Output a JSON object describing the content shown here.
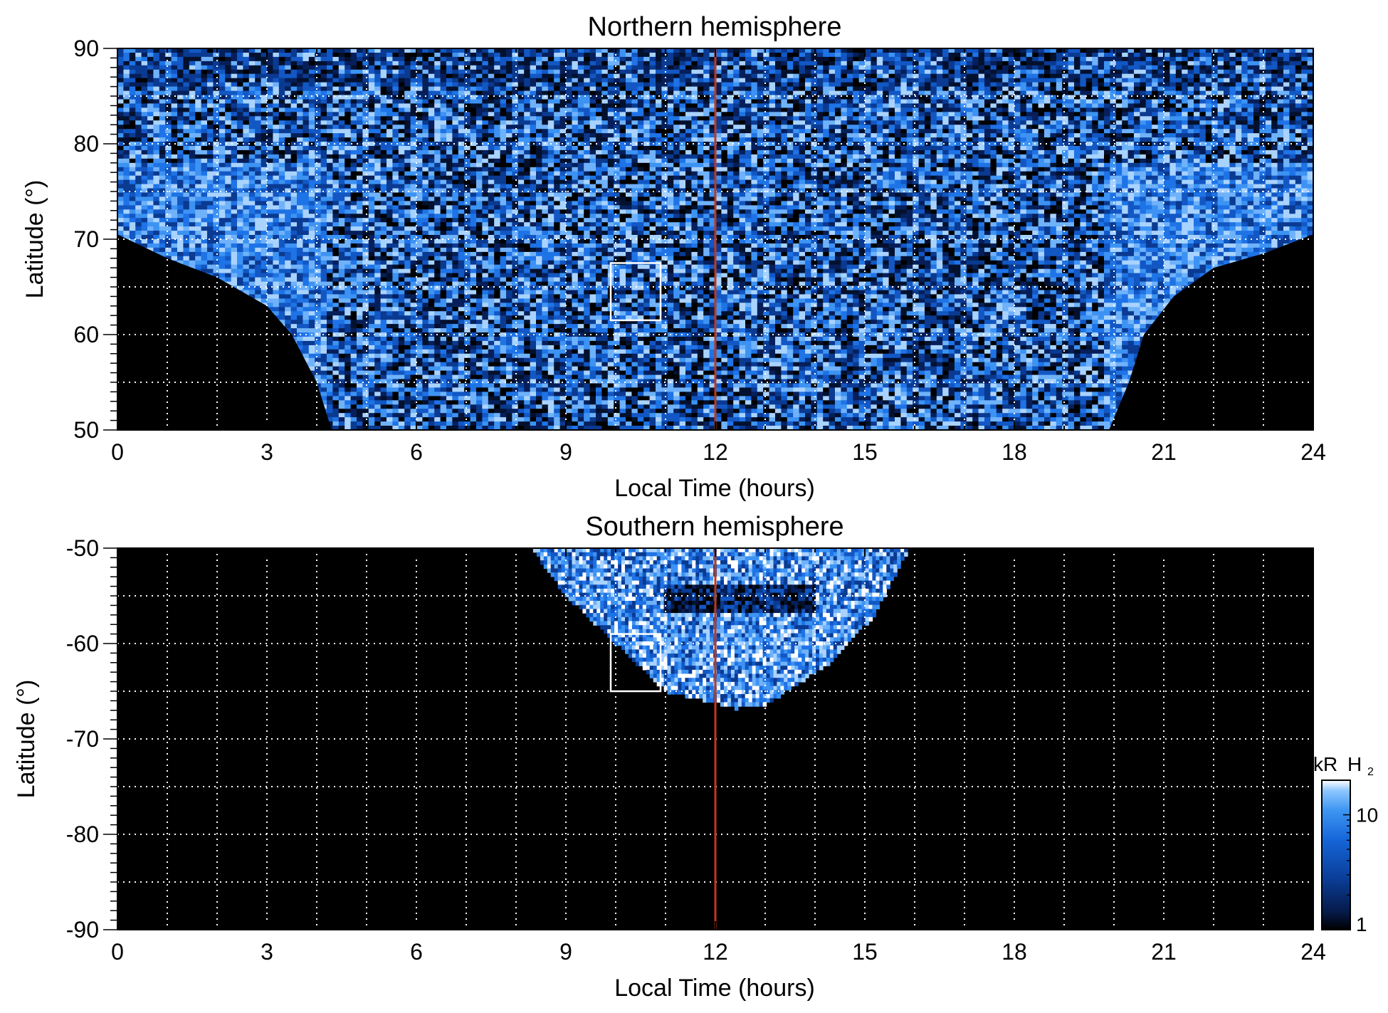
{
  "chart_data": [
    {
      "type": "heatmap",
      "panel": "north",
      "title": "Northern hemisphere",
      "xlabel": "Local Time (hours)",
      "ylabel": "Latitude (°)",
      "xlim": [
        0,
        24
      ],
      "ylim": [
        50,
        90
      ],
      "xticks": [
        0,
        3,
        6,
        9,
        12,
        15,
        18,
        21,
        24
      ],
      "yticks": [
        50,
        60,
        70,
        80,
        90
      ],
      "grid": true,
      "grid_x_step": 1,
      "grid_y_step": 5,
      "noon_line_lt": 12,
      "noon_line_color": "#c0391b",
      "highlight_box": {
        "lt": [
          9.9,
          10.9
        ],
        "lat": [
          61.5,
          67.5
        ]
      },
      "coverage_boundary": [
        [
          0,
          70.5
        ],
        [
          1,
          68
        ],
        [
          2,
          66
        ],
        [
          3,
          63
        ],
        [
          3.5,
          60
        ],
        [
          4,
          55
        ],
        [
          4.3,
          50
        ],
        [
          19.9,
          50
        ],
        [
          20.3,
          55
        ],
        [
          20.6,
          60
        ],
        [
          21.2,
          64
        ],
        [
          22,
          67
        ],
        [
          23,
          68.5
        ],
        [
          24,
          70.5
        ]
      ]
    },
    {
      "type": "heatmap",
      "panel": "south",
      "title": "Southern hemisphere",
      "xlabel": "Local Time (hours)",
      "ylabel": "Latitude (°)",
      "xlim": [
        0,
        24
      ],
      "ylim": [
        -90,
        -50
      ],
      "xticks": [
        0,
        3,
        6,
        9,
        12,
        15,
        18,
        21,
        24
      ],
      "yticks": [
        -50,
        -60,
        -70,
        -80,
        -90
      ],
      "grid": true,
      "grid_x_step": 1,
      "grid_y_step": 5,
      "noon_line_lt": 12,
      "noon_line_color": "#c0391b",
      "highlight_box": {
        "lt": [
          9.9,
          10.9
        ],
        "lat": [
          -65,
          -59
        ]
      },
      "coverage_boundary": [
        [
          8.3,
          -50
        ],
        [
          9,
          -55
        ],
        [
          10,
          -60
        ],
        [
          11,
          -65
        ],
        [
          11.8,
          -66
        ],
        [
          12.4,
          -66.8
        ],
        [
          13,
          -66.5
        ],
        [
          14.3,
          -62
        ],
        [
          15.2,
          -57
        ],
        [
          15.9,
          -50
        ]
      ]
    }
  ],
  "colorbar": {
    "label_units": "kR",
    "label_species": "H",
    "label_subscript": "2",
    "ticks": [
      1,
      10
    ],
    "range": [
      1,
      20
    ],
    "scale": "log",
    "colors": [
      "#000000",
      "#061a4a",
      "#0a3f9a",
      "#1565d8",
      "#3e96f2",
      "#8cc6ff",
      "#ffffff"
    ]
  }
}
